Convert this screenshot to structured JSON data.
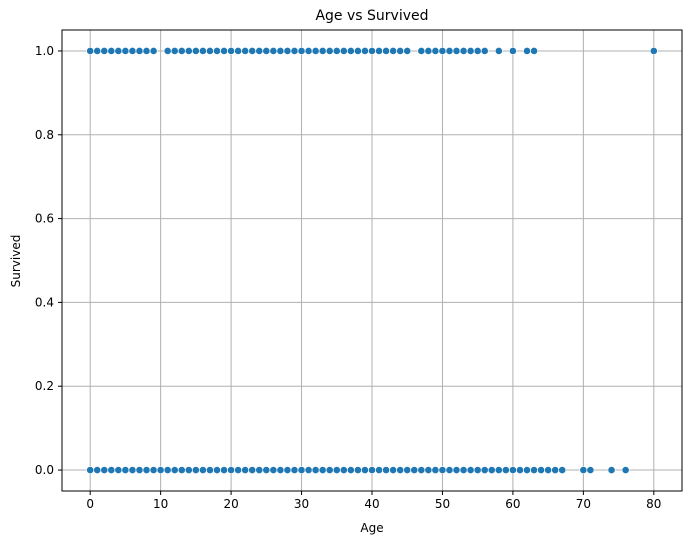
{
  "chart_data": {
    "type": "scatter",
    "title": "Age vs Survived",
    "xlabel": "Age",
    "ylabel": "Survived",
    "xlim": [
      -4,
      84
    ],
    "ylim": [
      -0.05,
      1.05
    ],
    "x_ticks": [
      0,
      10,
      20,
      30,
      40,
      50,
      60,
      70,
      80
    ],
    "y_ticks": [
      0.0,
      0.2,
      0.4,
      0.6,
      0.8,
      1.0
    ],
    "y_tick_labels": [
      "0.0",
      "0.2",
      "0.4",
      "0.6",
      "0.8",
      "1.0"
    ],
    "grid": true,
    "marker_color": "#1f77b4",
    "series": [
      {
        "points": [
          [
            0,
            1
          ],
          [
            1,
            1
          ],
          [
            2,
            1
          ],
          [
            3,
            1
          ],
          [
            4,
            1
          ],
          [
            5,
            1
          ],
          [
            6,
            1
          ],
          [
            7,
            1
          ],
          [
            8,
            1
          ],
          [
            9,
            1
          ],
          [
            11,
            1
          ],
          [
            12,
            1
          ],
          [
            13,
            1
          ],
          [
            14,
            1
          ],
          [
            15,
            1
          ],
          [
            16,
            1
          ],
          [
            17,
            1
          ],
          [
            18,
            1
          ],
          [
            19,
            1
          ],
          [
            20,
            1
          ],
          [
            21,
            1
          ],
          [
            22,
            1
          ],
          [
            23,
            1
          ],
          [
            24,
            1
          ],
          [
            25,
            1
          ],
          [
            26,
            1
          ],
          [
            27,
            1
          ],
          [
            28,
            1
          ],
          [
            29,
            1
          ],
          [
            30,
            1
          ],
          [
            31,
            1
          ],
          [
            32,
            1
          ],
          [
            33,
            1
          ],
          [
            34,
            1
          ],
          [
            35,
            1
          ],
          [
            36,
            1
          ],
          [
            37,
            1
          ],
          [
            38,
            1
          ],
          [
            39,
            1
          ],
          [
            40,
            1
          ],
          [
            41,
            1
          ],
          [
            42,
            1
          ],
          [
            43,
            1
          ],
          [
            44,
            1
          ],
          [
            45,
            1
          ],
          [
            47,
            1
          ],
          [
            48,
            1
          ],
          [
            49,
            1
          ],
          [
            50,
            1
          ],
          [
            51,
            1
          ],
          [
            52,
            1
          ],
          [
            53,
            1
          ],
          [
            54,
            1
          ],
          [
            55,
            1
          ],
          [
            56,
            1
          ],
          [
            58,
            1
          ],
          [
            60,
            1
          ],
          [
            62,
            1
          ],
          [
            63,
            1
          ],
          [
            80,
            1
          ],
          [
            0,
            0
          ],
          [
            1,
            0
          ],
          [
            2,
            0
          ],
          [
            3,
            0
          ],
          [
            4,
            0
          ],
          [
            5,
            0
          ],
          [
            6,
            0
          ],
          [
            7,
            0
          ],
          [
            8,
            0
          ],
          [
            9,
            0
          ],
          [
            10,
            0
          ],
          [
            11,
            0
          ],
          [
            12,
            0
          ],
          [
            13,
            0
          ],
          [
            14,
            0
          ],
          [
            15,
            0
          ],
          [
            16,
            0
          ],
          [
            17,
            0
          ],
          [
            18,
            0
          ],
          [
            19,
            0
          ],
          [
            20,
            0
          ],
          [
            21,
            0
          ],
          [
            22,
            0
          ],
          [
            23,
            0
          ],
          [
            24,
            0
          ],
          [
            25,
            0
          ],
          [
            26,
            0
          ],
          [
            27,
            0
          ],
          [
            28,
            0
          ],
          [
            29,
            0
          ],
          [
            30,
            0
          ],
          [
            31,
            0
          ],
          [
            32,
            0
          ],
          [
            33,
            0
          ],
          [
            34,
            0
          ],
          [
            35,
            0
          ],
          [
            36,
            0
          ],
          [
            37,
            0
          ],
          [
            38,
            0
          ],
          [
            39,
            0
          ],
          [
            40,
            0
          ],
          [
            41,
            0
          ],
          [
            42,
            0
          ],
          [
            43,
            0
          ],
          [
            44,
            0
          ],
          [
            45,
            0
          ],
          [
            46,
            0
          ],
          [
            47,
            0
          ],
          [
            48,
            0
          ],
          [
            49,
            0
          ],
          [
            50,
            0
          ],
          [
            51,
            0
          ],
          [
            52,
            0
          ],
          [
            53,
            0
          ],
          [
            54,
            0
          ],
          [
            55,
            0
          ],
          [
            56,
            0
          ],
          [
            57,
            0
          ],
          [
            58,
            0
          ],
          [
            59,
            0
          ],
          [
            60,
            0
          ],
          [
            61,
            0
          ],
          [
            62,
            0
          ],
          [
            63,
            0
          ],
          [
            64,
            0
          ],
          [
            65,
            0
          ],
          [
            66,
            0
          ],
          [
            67,
            0
          ],
          [
            70,
            0
          ],
          [
            71,
            0
          ],
          [
            74,
            0
          ],
          [
            76,
            0
          ]
        ]
      }
    ]
  }
}
